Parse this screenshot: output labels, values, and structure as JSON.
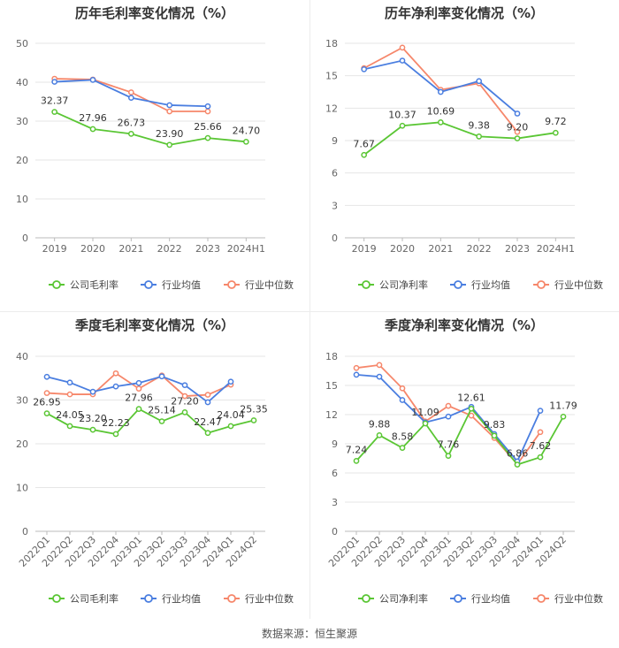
{
  "source": "数据来源：恒生聚源",
  "colors": {
    "company": "#5ac634",
    "avg": "#4a7ee0",
    "median": "#f6876b",
    "grid": "#e6e6e6",
    "axis": "#bbbbbb"
  },
  "chart_data": [
    {
      "type": "line",
      "title": "历年毛利率变化情况（%）",
      "categories": [
        "2019",
        "2020",
        "2021",
        "2022",
        "2023",
        "2024H1"
      ],
      "ylim": [
        0,
        50
      ],
      "yticks": [
        0,
        10,
        20,
        30,
        40,
        50
      ],
      "rotate_x": false,
      "series": [
        {
          "name": "公司毛利率",
          "key": "company",
          "values": [
            32.37,
            27.96,
            26.73,
            23.9,
            25.66,
            24.7
          ],
          "labels": true
        },
        {
          "name": "行业均值",
          "key": "avg",
          "values": [
            40.1,
            40.6,
            36.0,
            34.1,
            33.8,
            null
          ],
          "labels": false
        },
        {
          "name": "行业中位数",
          "key": "median",
          "values": [
            40.9,
            40.7,
            37.4,
            32.5,
            32.5,
            null
          ],
          "labels": false
        }
      ]
    },
    {
      "type": "line",
      "title": "历年净利率变化情况（%）",
      "categories": [
        "2019",
        "2020",
        "2021",
        "2022",
        "2023",
        "2024H1"
      ],
      "ylim": [
        0,
        18
      ],
      "yticks": [
        0,
        3,
        6,
        9,
        12,
        15,
        18
      ],
      "rotate_x": false,
      "series": [
        {
          "name": "公司净利率",
          "key": "company",
          "values": [
            7.67,
            10.37,
            10.69,
            9.38,
            9.2,
            9.72
          ],
          "labels": true
        },
        {
          "name": "行业均值",
          "key": "avg",
          "values": [
            15.6,
            16.4,
            13.5,
            14.5,
            11.5,
            null
          ],
          "labels": false
        },
        {
          "name": "行业中位数",
          "key": "median",
          "values": [
            15.7,
            17.6,
            13.7,
            14.3,
            9.8,
            null
          ],
          "labels": false
        }
      ]
    },
    {
      "type": "line",
      "title": "季度毛利率变化情况（%）",
      "categories": [
        "2022Q1",
        "2022Q2",
        "2022Q3",
        "2022Q4",
        "2023Q1",
        "2023Q2",
        "2023Q3",
        "2023Q4",
        "2024Q1",
        "2024Q2"
      ],
      "ylim": [
        0,
        40
      ],
      "yticks": [
        0,
        10,
        20,
        30,
        40
      ],
      "rotate_x": true,
      "series": [
        {
          "name": "公司毛利率",
          "key": "company",
          "values": [
            26.95,
            24.05,
            23.2,
            22.23,
            27.96,
            25.14,
            27.2,
            22.47,
            24.04,
            25.35
          ],
          "labels": true
        },
        {
          "name": "行业均值",
          "key": "avg",
          "values": [
            35.3,
            34.0,
            31.9,
            33.1,
            33.9,
            35.4,
            33.4,
            29.5,
            34.2,
            null
          ],
          "labels": false
        },
        {
          "name": "行业中位数",
          "key": "median",
          "values": [
            31.6,
            31.3,
            31.3,
            36.1,
            32.6,
            35.6,
            30.9,
            31.2,
            33.5,
            null
          ],
          "labels": false
        }
      ]
    },
    {
      "type": "line",
      "title": "季度净利率变化情况（%）",
      "categories": [
        "2022Q1",
        "2022Q2",
        "2022Q3",
        "2022Q4",
        "2023Q1",
        "2023Q2",
        "2023Q3",
        "2023Q4",
        "2024Q1",
        "2024Q2"
      ],
      "ylim": [
        0,
        18
      ],
      "yticks": [
        0,
        3,
        6,
        9,
        12,
        15,
        18
      ],
      "rotate_x": true,
      "series": [
        {
          "name": "公司净利率",
          "key": "company",
          "values": [
            7.24,
            9.88,
            8.58,
            11.09,
            7.76,
            12.61,
            9.83,
            6.86,
            7.62,
            11.79
          ],
          "labels": true
        },
        {
          "name": "行业均值",
          "key": "avg",
          "values": [
            16.1,
            15.9,
            13.5,
            11.2,
            11.8,
            12.8,
            10.0,
            7.2,
            12.4,
            null
          ],
          "labels": false
        },
        {
          "name": "行业中位数",
          "key": "median",
          "values": [
            16.8,
            17.1,
            14.7,
            11.3,
            12.9,
            11.9,
            9.6,
            6.9,
            10.2,
            null
          ],
          "labels": false
        }
      ]
    }
  ]
}
